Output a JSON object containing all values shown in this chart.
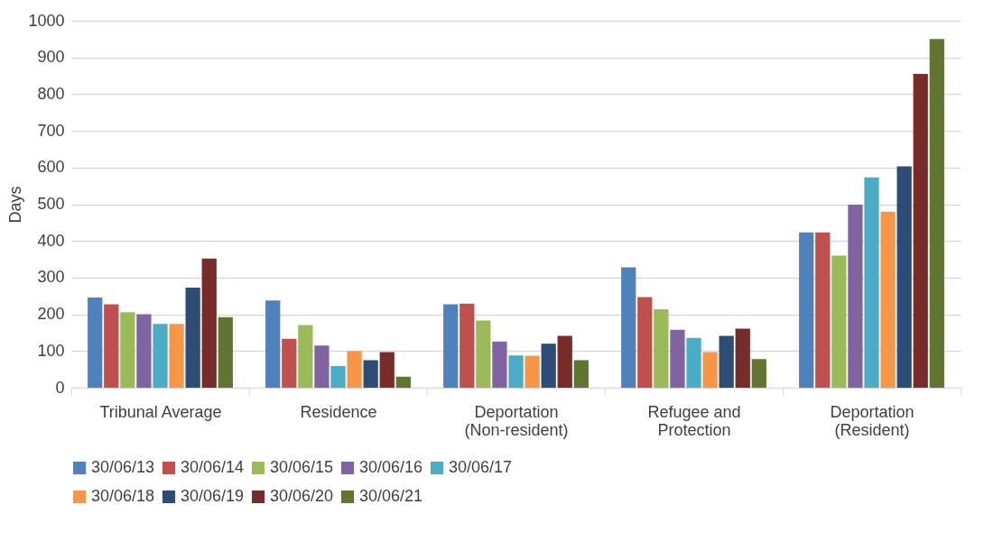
{
  "chart_data": {
    "type": "bar",
    "ylabel": "Days",
    "categories": [
      "Tribunal Average",
      "Residence",
      "Deportation (Non-resident)",
      "Refugee and Protection",
      "Deportation (Resident)"
    ],
    "series": [
      {
        "name": "30/06/13",
        "color": "#4f81bd",
        "values": [
          246,
          238,
          227,
          328,
          423
        ]
      },
      {
        "name": "30/06/14",
        "color": "#c0504d",
        "values": [
          227,
          133,
          229,
          247,
          423
        ]
      },
      {
        "name": "30/06/15",
        "color": "#9bbb59",
        "values": [
          206,
          171,
          183,
          214,
          360
        ]
      },
      {
        "name": "30/06/16",
        "color": "#8064a2",
        "values": [
          200,
          115,
          126,
          158,
          499
        ]
      },
      {
        "name": "30/06/17",
        "color": "#4bacc6",
        "values": [
          174,
          59,
          88,
          136,
          573
        ]
      },
      {
        "name": "30/06/18",
        "color": "#f79646",
        "values": [
          174,
          100,
          87,
          97,
          480
        ]
      },
      {
        "name": "30/06/19",
        "color": "#2c4d75",
        "values": [
          273,
          75,
          120,
          141,
          603
        ]
      },
      {
        "name": "30/06/20",
        "color": "#772c2a",
        "values": [
          352,
          97,
          141,
          161,
          855
        ]
      },
      {
        "name": "30/06/21",
        "color": "#5f7530",
        "values": [
          192,
          30,
          75,
          78,
          950
        ]
      }
    ],
    "ylim": [
      0,
      1000
    ],
    "yticks": [
      0,
      100,
      200,
      300,
      400,
      500,
      600,
      700,
      800,
      900,
      {
        "value": 1000,
        "label": "1000"
      }
    ],
    "grid": "y",
    "legend": "bottom"
  }
}
